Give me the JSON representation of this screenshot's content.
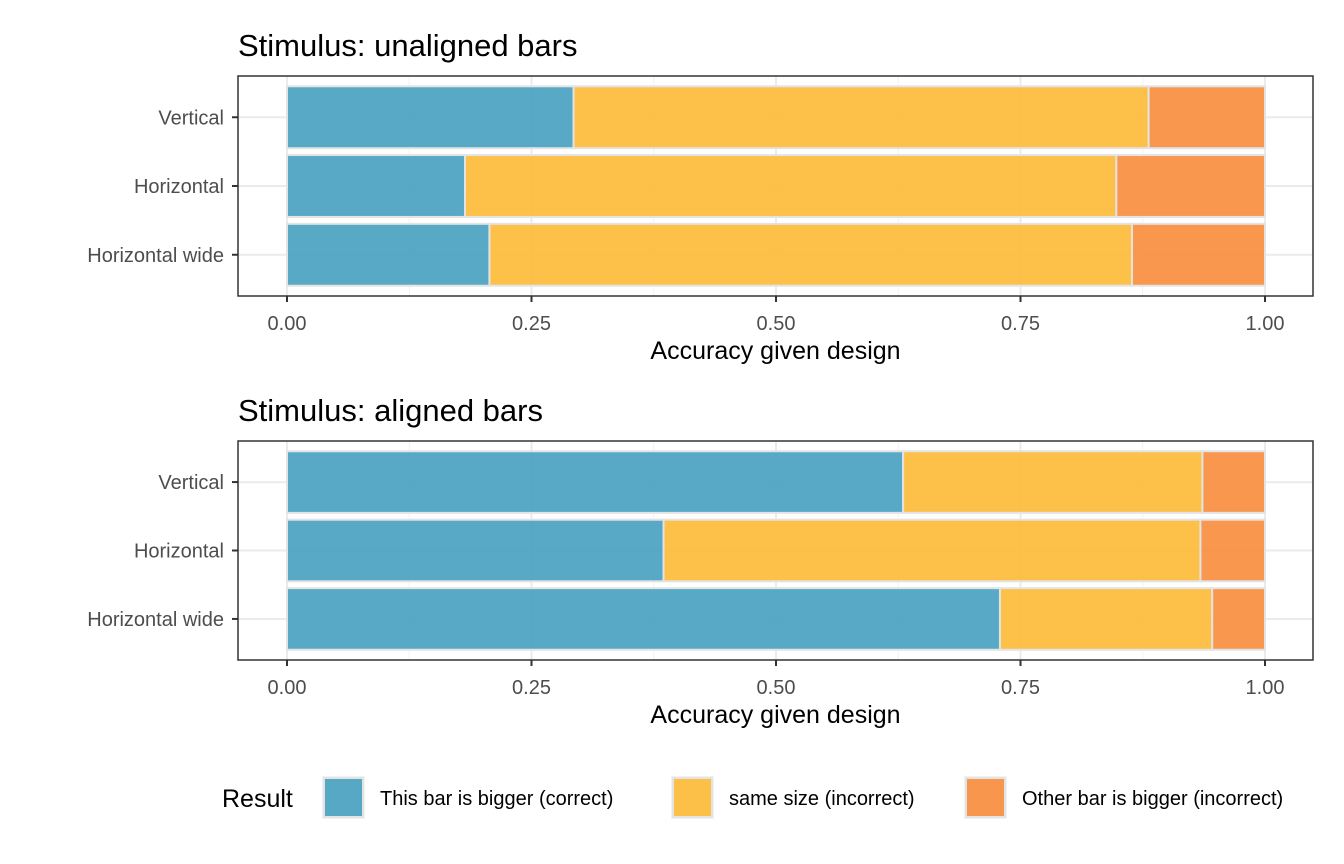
{
  "chart_data": [
    {
      "type": "bar",
      "orientation": "horizontal",
      "stacked": true,
      "title": "Stimulus: unaligned bars",
      "xlabel": "Accuracy given design",
      "ylabel": "",
      "xlim": [
        0,
        1
      ],
      "xticks": [
        "0.00",
        "0.25",
        "0.50",
        "0.75",
        "1.00"
      ],
      "categories": [
        "Vertical",
        "Horizontal",
        "Horizontal wide"
      ],
      "series": [
        {
          "name": "This bar is bigger (correct)",
          "values": [
            0.293,
            0.182,
            0.207
          ]
        },
        {
          "name": "same size (incorrect)",
          "values": [
            0.588,
            0.666,
            0.657
          ]
        },
        {
          "name": "Other bar is bigger (incorrect)",
          "values": [
            0.119,
            0.152,
            0.136
          ]
        }
      ],
      "grid": true
    },
    {
      "type": "bar",
      "orientation": "horizontal",
      "stacked": true,
      "title": "Stimulus: aligned bars",
      "xlabel": "Accuracy given design",
      "ylabel": "",
      "xlim": [
        0,
        1
      ],
      "xticks": [
        "0.00",
        "0.25",
        "0.50",
        "0.75",
        "1.00"
      ],
      "categories": [
        "Vertical",
        "Horizontal",
        "Horizontal wide"
      ],
      "series": [
        {
          "name": "This bar is bigger (correct)",
          "values": [
            0.63,
            0.385,
            0.729
          ]
        },
        {
          "name": "same size (incorrect)",
          "values": [
            0.306,
            0.549,
            0.217
          ]
        },
        {
          "name": "Other bar is bigger (incorrect)",
          "values": [
            0.064,
            0.066,
            0.054
          ]
        }
      ],
      "grid": true
    }
  ],
  "legend": {
    "title": "Result",
    "position": "bottom",
    "items": [
      {
        "label": "This bar is bigger (correct)",
        "color": "#4aa3c2"
      },
      {
        "label": "same size (incorrect)",
        "color": "#fdbc3b"
      },
      {
        "label": "Other bar is bigger (incorrect)",
        "color": "#f78f3f"
      }
    ]
  },
  "colors": [
    "#4aa3c2",
    "#fdbc3b",
    "#f78f3f"
  ]
}
